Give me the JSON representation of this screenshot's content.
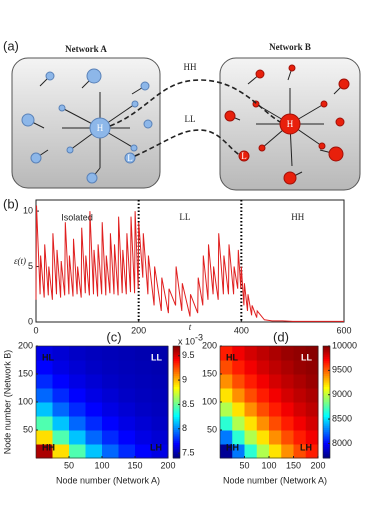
{
  "diagram": {
    "panel_label": "(a)",
    "network_a": "Network A",
    "network_b": "Network B",
    "link_hh": "HH",
    "link_ll": "LL",
    "hub": "H",
    "leaf": "L"
  },
  "chart_data": [
    {
      "type": "line",
      "panel_label": "(b)",
      "ylabel": "ε(t)",
      "xlabel": "t",
      "color": "#e02020",
      "annotations": [
        "Isolated",
        "LL",
        "HH"
      ],
      "vlines": [
        200,
        400
      ],
      "xlim": [
        0,
        600
      ],
      "ylim": [
        0,
        11
      ],
      "xticks": [
        0,
        200,
        400,
        600
      ],
      "yticks": [
        0,
        5,
        10
      ],
      "x": [
        0,
        1,
        8,
        9,
        16,
        17,
        24,
        25,
        32,
        33,
        40,
        41,
        48,
        49,
        56,
        57,
        64,
        65,
        72,
        73,
        80,
        81,
        88,
        89,
        96,
        97,
        104,
        105,
        112,
        113,
        120,
        121,
        128,
        129,
        136,
        137,
        144,
        145,
        152,
        153,
        160,
        161,
        168,
        169,
        176,
        177,
        184,
        185,
        192,
        193,
        199,
        200,
        208,
        209,
        218,
        219,
        230,
        231,
        244,
        245,
        258,
        259,
        272,
        273,
        284,
        285,
        300,
        301,
        315,
        316,
        325,
        326,
        335,
        336,
        345,
        346,
        355,
        356,
        365,
        366,
        375,
        376,
        385,
        386,
        393,
        394,
        399,
        400,
        405,
        406,
        412,
        413,
        420,
        421,
        430,
        431,
        445,
        460,
        480,
        500,
        550,
        600
      ],
      "values": [
        2,
        10.5,
        2.5,
        6,
        2.2,
        7,
        2.4,
        5,
        2,
        8,
        2.5,
        6.5,
        2.2,
        5.5,
        2.4,
        9,
        2.5,
        6,
        2.3,
        7.5,
        2.5,
        5,
        2.2,
        8.5,
        2.6,
        6,
        2.4,
        10,
        2.5,
        6.5,
        2.3,
        7,
        2.5,
        9,
        2.4,
        6,
        2.6,
        8,
        2.5,
        7,
        2.4,
        9.5,
        2.6,
        6.5,
        2.5,
        8,
        2.7,
        9.5,
        2.6,
        10,
        3,
        9,
        4,
        8,
        2.5,
        6,
        1.5,
        5,
        1,
        4,
        0.8,
        3,
        1.5,
        5,
        1,
        3.5,
        0.5,
        2.5,
        0.8,
        4,
        1.5,
        6,
        2,
        7,
        2.5,
        5,
        2,
        8,
        2.5,
        6,
        2.5,
        7,
        2.5,
        5,
        3,
        6.5,
        3,
        5,
        1.5,
        3.5,
        1,
        2.5,
        0.6,
        1.5,
        0.4,
        1,
        0.2,
        0.1,
        0.1,
        0.05,
        0.05,
        0.05
      ]
    },
    {
      "type": "heatmap",
      "panel_label": "(c)",
      "xlabel": "Node number (Network A)",
      "ylabel": "Node number (Network B)",
      "corner_labels": [
        "HL",
        "LL",
        "HH",
        "LH"
      ],
      "colormap": "jet",
      "xlim": [
        0,
        200
      ],
      "ylim": [
        0,
        200
      ],
      "xticks": [
        50,
        100,
        150,
        200
      ],
      "yticks": [
        50,
        100,
        150,
        200
      ],
      "clim": [
        7.4,
        9.7
      ],
      "cticks": [
        7.5,
        8,
        8.5,
        9,
        9.5
      ],
      "colorbar_unit": "x 10",
      "colorbar_exponent": "-3",
      "z": [
        [
          9.6,
          8.91,
          8.44,
          8.13,
          7.92,
          7.78,
          7.69,
          7.63
        ],
        [
          8.91,
          8.44,
          8.13,
          7.92,
          7.78,
          7.69,
          7.63,
          7.59
        ],
        [
          8.44,
          8.13,
          7.92,
          7.78,
          7.69,
          7.63,
          7.59,
          7.56
        ],
        [
          8.13,
          7.92,
          7.78,
          7.69,
          7.63,
          7.59,
          7.56,
          7.54
        ],
        [
          7.92,
          7.78,
          7.69,
          7.63,
          7.59,
          7.56,
          7.54,
          7.53
        ],
        [
          7.78,
          7.69,
          7.63,
          7.59,
          7.56,
          7.54,
          7.53,
          7.52
        ],
        [
          7.69,
          7.63,
          7.59,
          7.56,
          7.54,
          7.53,
          7.52,
          7.51
        ],
        [
          7.63,
          7.59,
          7.56,
          7.54,
          7.53,
          7.52,
          7.51,
          7.5
        ]
      ]
    },
    {
      "type": "heatmap",
      "panel_label": "(d)",
      "xlabel": "Node number (Network A)",
      "corner_labels": [
        "HL",
        "LL",
        "HH",
        "LH"
      ],
      "colormap": "jet",
      "xlim": [
        0,
        200
      ],
      "ylim": [
        0,
        200
      ],
      "xticks": [
        50,
        100,
        150,
        200
      ],
      "yticks": [
        50,
        100,
        150,
        200
      ],
      "clim": [
        7700,
        10000
      ],
      "cticks": [
        8000,
        8500,
        9000,
        9500,
        10000
      ],
      "z": [
        [
          7750,
          8260,
          8660,
          8960,
          9200,
          9390,
          9540,
          9650
        ],
        [
          8260,
          8660,
          8960,
          9200,
          9390,
          9540,
          9650,
          9740
        ],
        [
          8660,
          8960,
          9200,
          9390,
          9540,
          9650,
          9740,
          9810
        ],
        [
          8960,
          9200,
          9390,
          9540,
          9650,
          9740,
          9810,
          9860
        ],
        [
          9200,
          9390,
          9540,
          9650,
          9740,
          9810,
          9860,
          9900
        ],
        [
          9390,
          9540,
          9650,
          9740,
          9810,
          9860,
          9900,
          9940
        ],
        [
          9540,
          9650,
          9740,
          9810,
          9860,
          9900,
          9940,
          9960
        ],
        [
          9650,
          9740,
          9810,
          9860,
          9900,
          9940,
          9960,
          9980
        ]
      ]
    }
  ]
}
